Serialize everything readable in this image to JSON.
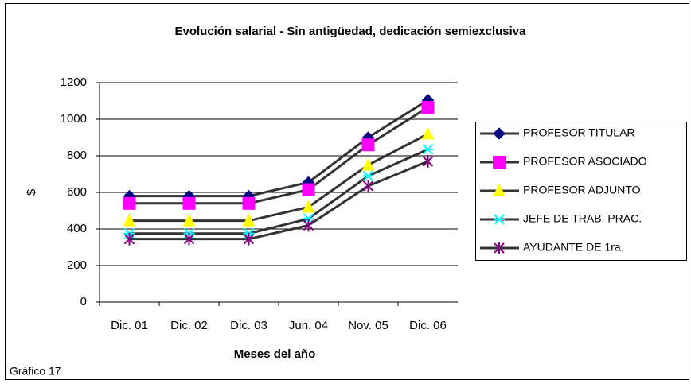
{
  "chart_data": {
    "type": "line",
    "title": "Evolución salarial - Sin antigüedad, dedicación semiexclusiva",
    "x_label": "Meses del año",
    "y_label": "$",
    "footnote": "Gráfico 17",
    "categories": [
      "Dic. 01",
      "Dic. 02",
      "Dic. 03",
      "Jun. 04",
      "Nov. 05",
      "Dic. 06"
    ],
    "ylim": [
      0,
      1200
    ],
    "yticks": [
      0,
      200,
      400,
      600,
      800,
      1000,
      1200
    ],
    "grid": true,
    "legend": "right",
    "line_color": "#333333",
    "series": [
      {
        "name": "PROFESOR TITULAR",
        "color": "#000080",
        "marker": "diamond",
        "values": [
          580,
          580,
          580,
          655,
          900,
          1105
        ]
      },
      {
        "name": "PROFESOR ASOCIADO",
        "color": "#ff00ff",
        "marker": "square",
        "values": [
          540,
          540,
          540,
          615,
          860,
          1065
        ]
      },
      {
        "name": "PROFESOR ADJUNTO",
        "color": "#ffff00",
        "marker": "triangle",
        "values": [
          445,
          445,
          445,
          520,
          750,
          920
        ]
      },
      {
        "name": "JEFE DE TRAB. PRAC.",
        "color": "#00ffff",
        "marker": "cross",
        "values": [
          375,
          375,
          375,
          456,
          690,
          835
        ]
      },
      {
        "name": "AYUDANTE DE 1ra.",
        "color": "#800080",
        "marker": "star",
        "values": [
          345,
          345,
          345,
          420,
          635,
          770
        ]
      }
    ]
  }
}
